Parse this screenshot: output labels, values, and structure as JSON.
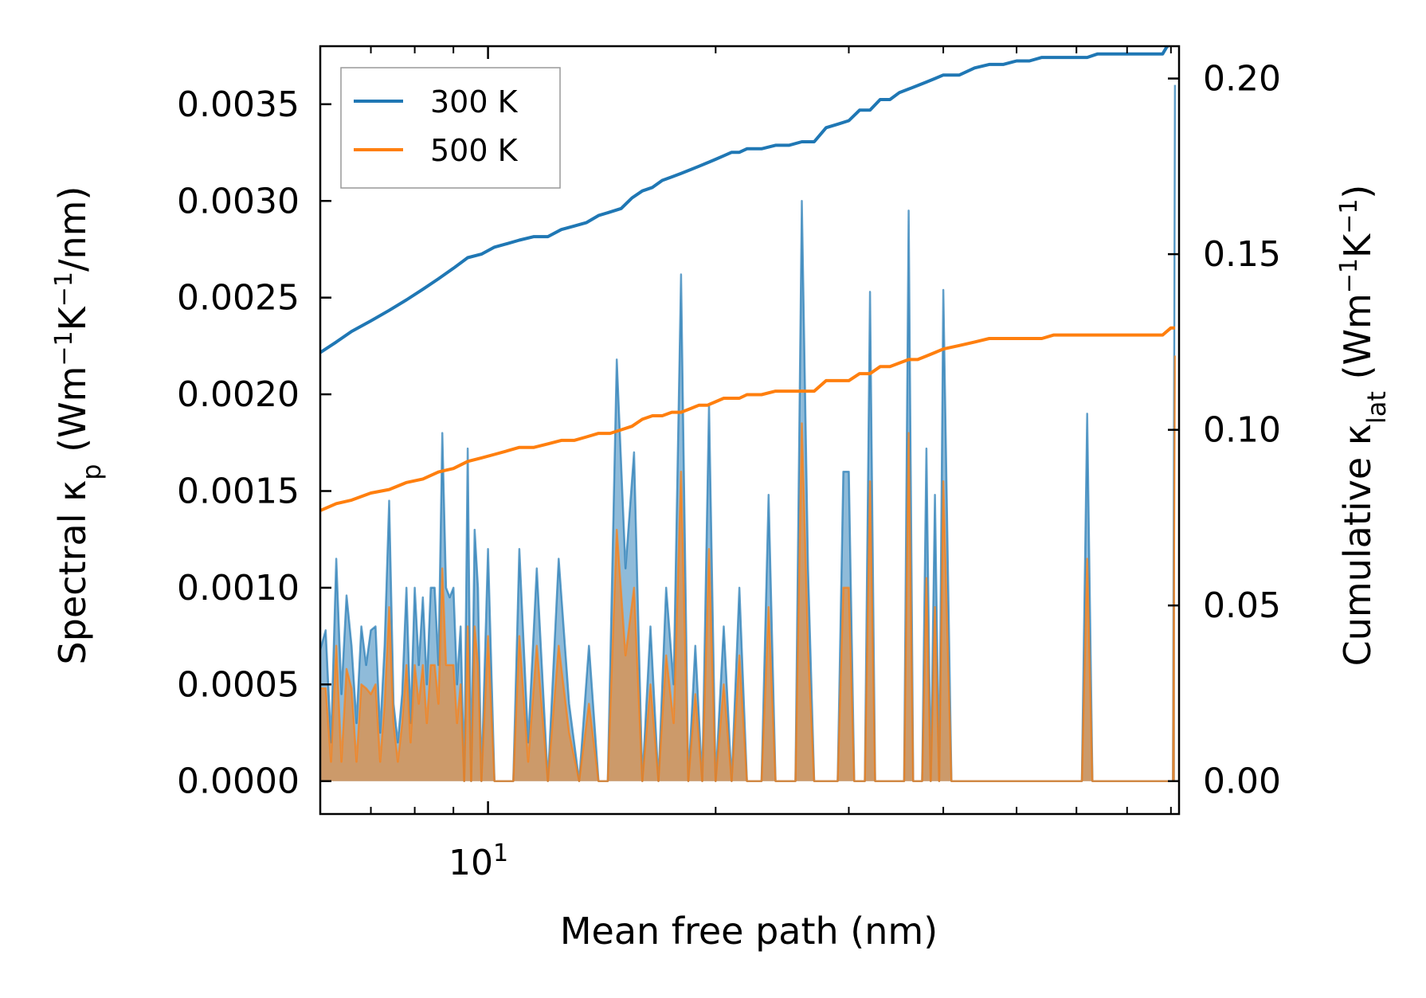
{
  "chart_data": {
    "type": "area",
    "xlabel": "Mean free path (nm)",
    "ylabel": "Spectral κ",
    "ylabel_sub": "p",
    "ylabel_unit_prefix": " (Wm",
    "ylabel_unit_mid": "K",
    "ylabel_unit_suffix": "/nm)",
    "y2label": "Cumulative κ",
    "y2label_sub": "lat",
    "y2label_unit_prefix": " (Wm",
    "y2label_unit_mid": "K",
    "y2label_unit_suffix": ")",
    "exponent_text": "−1",
    "x_scale": "log",
    "xlim": [
      6.0,
      82.0
    ],
    "ylim": [
      -0.00017,
      0.0038
    ],
    "y2lim": [
      -0.00936,
      0.2092
    ],
    "x_tick_label_base": "10",
    "x_tick_label_exp": "1",
    "x_tick_value": 10,
    "y_ticks": [
      "0.0000",
      "0.0005",
      "0.0010",
      "0.0015",
      "0.0020",
      "0.0025",
      "0.0030",
      "0.0035"
    ],
    "y2_ticks": [
      "0.00",
      "0.05",
      "0.10",
      "0.15",
      "0.20"
    ],
    "legend": {
      "placement": "top-left",
      "entries": [
        {
          "label": "300 K",
          "color": "#1f77b4"
        },
        {
          "label": "500 K",
          "color": "#ff7f0e"
        }
      ]
    },
    "series": [
      {
        "name": "300 K",
        "color": "#1f77b4",
        "spectral_x": [
          6.0,
          6.1,
          6.2,
          6.3,
          6.4,
          6.5,
          6.6,
          6.7,
          6.8,
          6.9,
          7.0,
          7.1,
          7.2,
          7.3,
          7.4,
          7.5,
          7.6,
          7.7,
          7.8,
          7.9,
          8.0,
          8.1,
          8.2,
          8.3,
          8.4,
          8.5,
          8.6,
          8.7,
          8.8,
          8.9,
          9.0,
          9.1,
          9.2,
          9.3,
          9.4,
          9.5,
          9.6,
          9.7,
          9.8,
          10.0,
          10.2,
          10.4,
          10.6,
          10.8,
          11.0,
          11.3,
          11.6,
          12.0,
          12.4,
          12.8,
          13.2,
          13.6,
          14.0,
          14.4,
          14.8,
          15.2,
          15.6,
          16.0,
          16.4,
          16.8,
          17.2,
          17.6,
          18.0,
          18.4,
          18.8,
          19.2,
          19.6,
          20.0,
          20.5,
          21.0,
          21.5,
          22.0,
          22.5,
          23.0,
          23.5,
          24.0,
          24.5,
          25.0,
          25.5,
          26.0,
          26.5,
          27.0,
          27.5,
          28.0,
          28.5,
          29.0,
          29.5,
          30.0,
          30.5,
          31.0,
          31.5,
          32.0,
          32.5,
          33.0,
          33.5,
          34.0,
          34.5,
          35.0,
          35.5,
          36.0,
          36.5,
          37.0,
          37.5,
          38.0,
          38.5,
          39.0,
          39.5,
          40.0,
          41.0,
          42.0,
          43.0,
          44.0,
          45.0,
          46.0,
          47.0,
          48.0,
          49.0,
          50.0,
          51.0,
          52.0,
          53.0,
          54.0,
          55.0,
          56.0,
          57.0,
          58.0,
          59.0,
          60.0,
          61.0,
          62.0,
          63.0,
          64.0,
          65.0,
          66.0,
          67.0,
          68.0,
          69.0,
          70.0,
          71.0,
          72.0,
          73.0,
          74.0,
          75.0,
          76.0,
          77.0,
          78.0,
          78.5,
          79.0,
          79.5,
          80.0,
          80.5,
          81.0
        ],
        "spectral_y": [
          0.00068,
          0.00078,
          0.0002,
          0.00115,
          0.00045,
          0.00096,
          0.0007,
          0.0003,
          0.0008,
          0.0006,
          0.00078,
          0.0008,
          0.00025,
          0.0007,
          0.00145,
          0.0004,
          0.0002,
          0.00045,
          0.001,
          0.0003,
          0.001,
          0.0006,
          0.00095,
          0.0005,
          0.001,
          0.001,
          0.0006,
          0.0018,
          0.001,
          0.00095,
          0.001,
          0.0005,
          0.0008,
          0.0,
          0.00172,
          0.0,
          0.0013,
          0.001,
          0.0,
          0.0012,
          0.0,
          0.0,
          0.0,
          0.0,
          0.0012,
          0.0002,
          0.0011,
          0.0,
          0.00115,
          0.0004,
          0.0,
          0.0007,
          0.0,
          0.0,
          0.00218,
          0.0011,
          0.0017,
          0.0,
          0.0008,
          0.0,
          0.001,
          0.0005,
          0.00262,
          0.0,
          0.0007,
          0.0,
          0.00195,
          0.0,
          0.0008,
          0.0,
          0.001,
          0.0,
          0.0,
          0.0,
          0.00148,
          0.0,
          0.0,
          0.0,
          0.0,
          0.003,
          0.0011,
          0.0,
          0.0,
          0.0,
          0.0,
          0.0,
          0.0016,
          0.0016,
          0.0,
          0.0,
          0.0,
          0.00253,
          0.0,
          0.0,
          0.0,
          0.0,
          0.0,
          0.0,
          0.0,
          0.00295,
          0.0,
          0.0,
          0.0,
          0.00172,
          0.0,
          0.00148,
          0.0,
          0.00254,
          0.0,
          0.0,
          0.0,
          0.0,
          0.0,
          0.0,
          0.0,
          0.0,
          0.0,
          0.0,
          0.0,
          0.0,
          0.0,
          0.0,
          0.0,
          0.0,
          0.0,
          0.0,
          0.0,
          0.0,
          0.0,
          0.0019,
          0.0,
          0.0,
          0.0,
          0.0,
          0.0,
          0.0,
          0.0,
          0.0,
          0.0,
          0.0,
          0.0,
          0.0,
          0.0,
          0.0,
          0.0,
          0.0,
          0.0,
          0.0,
          0.0,
          0.0,
          0.0,
          0.0036,
          0.0
        ],
        "cumulative_x": [
          6.0,
          6.3,
          6.6,
          7.0,
          7.4,
          7.8,
          8.2,
          8.6,
          9.0,
          9.4,
          9.8,
          10.2,
          10.6,
          11.0,
          11.5,
          12.0,
          12.5,
          13.0,
          13.5,
          14.0,
          14.5,
          15.0,
          15.5,
          16.0,
          16.5,
          17.0,
          17.5,
          18.0,
          18.5,
          19.0,
          19.5,
          20.0,
          20.5,
          21.0,
          21.5,
          22.0,
          23.0,
          24.0,
          25.0,
          26.0,
          27.0,
          28.0,
          29.0,
          30.0,
          31.0,
          32.0,
          33.0,
          34.0,
          35.0,
          36.0,
          37.0,
          38.0,
          39.0,
          40.0,
          42.0,
          44.0,
          46.0,
          48.0,
          50.0,
          52.0,
          54.0,
          56.0,
          58.0,
          60.0,
          62.0,
          64.0,
          66.0,
          68.0,
          70.0,
          72.0,
          74.0,
          76.0,
          78.0,
          79.0,
          80.0,
          81.0
        ],
        "cumulative_y": [
          0.122,
          0.125,
          0.128,
          0.131,
          0.134,
          0.137,
          0.14,
          0.143,
          0.146,
          0.149,
          0.15,
          0.152,
          0.153,
          0.154,
          0.155,
          0.155,
          0.157,
          0.158,
          0.159,
          0.161,
          0.162,
          0.163,
          0.166,
          0.168,
          0.169,
          0.171,
          0.172,
          0.173,
          0.174,
          0.175,
          0.176,
          0.177,
          0.178,
          0.179,
          0.179,
          0.18,
          0.18,
          0.181,
          0.181,
          0.182,
          0.182,
          0.186,
          0.187,
          0.188,
          0.191,
          0.191,
          0.194,
          0.194,
          0.196,
          0.197,
          0.198,
          0.199,
          0.2,
          0.201,
          0.201,
          0.203,
          0.204,
          0.204,
          0.205,
          0.205,
          0.206,
          0.206,
          0.206,
          0.206,
          0.206,
          0.207,
          0.207,
          0.207,
          0.207,
          0.207,
          0.207,
          0.207,
          0.207,
          0.209,
          0.21,
          0.21
        ]
      },
      {
        "name": "500 K",
        "color": "#ff7f0e",
        "spectral_x": [
          6.0,
          6.1,
          6.2,
          6.3,
          6.4,
          6.5,
          6.6,
          6.7,
          6.8,
          6.9,
          7.0,
          7.1,
          7.2,
          7.3,
          7.4,
          7.5,
          7.6,
          7.7,
          7.8,
          7.9,
          8.0,
          8.1,
          8.2,
          8.3,
          8.4,
          8.5,
          8.6,
          8.7,
          8.8,
          8.9,
          9.0,
          9.1,
          9.2,
          9.3,
          9.4,
          9.5,
          9.6,
          9.7,
          9.8,
          10.0,
          10.2,
          10.4,
          10.6,
          10.8,
          11.0,
          11.3,
          11.6,
          12.0,
          12.4,
          12.8,
          13.2,
          13.6,
          14.0,
          14.4,
          14.8,
          15.2,
          15.6,
          16.0,
          16.4,
          16.8,
          17.2,
          17.6,
          18.0,
          18.4,
          18.8,
          19.2,
          19.6,
          20.0,
          20.5,
          21.0,
          21.5,
          22.0,
          22.5,
          23.0,
          23.5,
          24.0,
          24.5,
          25.0,
          25.5,
          26.0,
          26.5,
          27.0,
          27.5,
          28.0,
          28.5,
          29.0,
          29.5,
          30.0,
          30.5,
          31.0,
          31.5,
          32.0,
          32.5,
          33.0,
          33.5,
          34.0,
          34.5,
          35.0,
          35.5,
          36.0,
          36.5,
          37.0,
          37.5,
          38.0,
          38.5,
          39.0,
          39.5,
          40.0,
          41.0,
          42.0,
          43.0,
          44.0,
          45.0,
          46.0,
          47.0,
          48.0,
          49.0,
          50.0,
          51.0,
          52.0,
          53.0,
          54.0,
          55.0,
          56.0,
          57.0,
          58.0,
          59.0,
          60.0,
          61.0,
          62.0,
          63.0,
          64.0,
          65.0,
          66.0,
          67.0,
          68.0,
          69.0,
          70.0,
          71.0,
          72.0,
          73.0,
          74.0,
          75.0,
          76.0,
          77.0,
          78.0,
          78.5,
          79.0,
          79.5,
          80.0,
          80.5,
          81.0
        ],
        "spectral_y": [
          0.00048,
          0.00048,
          0.0001,
          0.0007,
          0.0001,
          0.00058,
          0.00048,
          0.0001,
          0.0005,
          0.00048,
          0.00045,
          0.0005,
          0.0001,
          0.0004,
          0.0009,
          0.0003,
          0.0001,
          0.0003,
          0.0006,
          0.0002,
          0.0006,
          0.0004,
          0.0006,
          0.0003,
          0.0006,
          0.0006,
          0.0004,
          0.0011,
          0.0006,
          0.0006,
          0.0006,
          0.0003,
          0.0005,
          0.0,
          0.0008,
          0.0,
          0.0008,
          0.0006,
          0.0,
          0.00075,
          0.0,
          0.0,
          0.0,
          0.0,
          0.00075,
          0.0001,
          0.0007,
          0.0,
          0.0007,
          0.00025,
          0.0,
          0.0004,
          0.0,
          0.0,
          0.0013,
          0.00065,
          0.001,
          0.0,
          0.0005,
          0.0,
          0.00065,
          0.0003,
          0.0016,
          0.0,
          0.00045,
          0.0,
          0.0012,
          0.0,
          0.0005,
          0.0,
          0.00065,
          0.0,
          0.0,
          0.0,
          0.0009,
          0.0,
          0.0,
          0.0,
          0.0,
          0.00185,
          0.0007,
          0.0,
          0.0,
          0.0,
          0.0,
          0.0,
          0.001,
          0.001,
          0.0,
          0.0,
          0.0,
          0.00155,
          0.0,
          0.0,
          0.0,
          0.0,
          0.0,
          0.0,
          0.0,
          0.0018,
          0.0,
          0.0,
          0.0,
          0.00105,
          0.0,
          0.0009,
          0.0,
          0.00155,
          0.0,
          0.0,
          0.0,
          0.0,
          0.0,
          0.0,
          0.0,
          0.0,
          0.0,
          0.0,
          0.0,
          0.0,
          0.0,
          0.0,
          0.0,
          0.0,
          0.0,
          0.0,
          0.0,
          0.0,
          0.0,
          0.00115,
          0.0,
          0.0,
          0.0,
          0.0,
          0.0,
          0.0,
          0.0,
          0.0,
          0.0,
          0.0,
          0.0,
          0.0,
          0.0,
          0.0,
          0.0,
          0.0,
          0.0,
          0.0,
          0.0,
          0.0,
          0.0,
          0.0022,
          0.0
        ],
        "cumulative_x": [
          6.0,
          6.3,
          6.6,
          7.0,
          7.4,
          7.8,
          8.2,
          8.6,
          9.0,
          9.4,
          9.8,
          10.2,
          10.6,
          11.0,
          11.5,
          12.0,
          12.5,
          13.0,
          13.5,
          14.0,
          14.5,
          15.0,
          15.5,
          16.0,
          16.5,
          17.0,
          17.5,
          18.0,
          18.5,
          19.0,
          19.5,
          20.0,
          20.5,
          21.0,
          21.5,
          22.0,
          23.0,
          24.0,
          25.0,
          26.0,
          27.0,
          28.0,
          29.0,
          30.0,
          31.0,
          32.0,
          33.0,
          34.0,
          35.0,
          36.0,
          37.0,
          38.0,
          39.0,
          40.0,
          42.0,
          44.0,
          46.0,
          48.0,
          50.0,
          52.0,
          54.0,
          56.0,
          58.0,
          60.0,
          62.0,
          64.0,
          66.0,
          68.0,
          70.0,
          72.0,
          74.0,
          76.0,
          78.0,
          79.0,
          80.0,
          81.0
        ],
        "cumulative_y": [
          0.077,
          0.079,
          0.08,
          0.082,
          0.083,
          0.085,
          0.086,
          0.088,
          0.089,
          0.091,
          0.092,
          0.093,
          0.094,
          0.095,
          0.095,
          0.096,
          0.097,
          0.097,
          0.098,
          0.099,
          0.099,
          0.1,
          0.101,
          0.103,
          0.104,
          0.104,
          0.105,
          0.105,
          0.106,
          0.107,
          0.107,
          0.108,
          0.109,
          0.109,
          0.109,
          0.11,
          0.11,
          0.111,
          0.111,
          0.111,
          0.111,
          0.114,
          0.114,
          0.114,
          0.116,
          0.116,
          0.118,
          0.118,
          0.119,
          0.12,
          0.12,
          0.121,
          0.122,
          0.123,
          0.124,
          0.125,
          0.126,
          0.126,
          0.126,
          0.126,
          0.126,
          0.127,
          0.127,
          0.127,
          0.127,
          0.127,
          0.127,
          0.127,
          0.127,
          0.127,
          0.127,
          0.127,
          0.127,
          0.128,
          0.129,
          0.129
        ]
      }
    ]
  }
}
